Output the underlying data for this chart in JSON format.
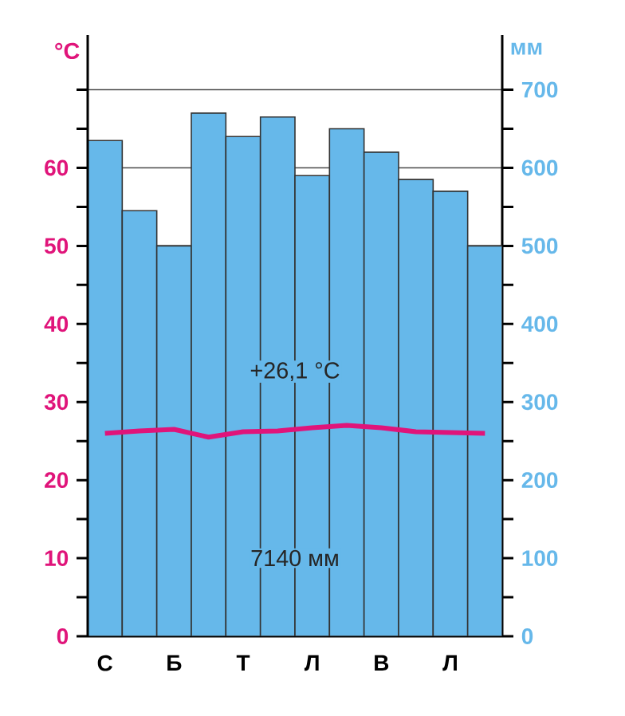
{
  "chart_data": {
    "type": "bar",
    "ylabel": "°C",
    "y2label": "мм",
    "categories": [
      "С",
      null,
      "Б",
      null,
      "Т",
      null,
      "Л",
      null,
      "В",
      null,
      "Л",
      null
    ],
    "series": [
      {
        "axis": "y2",
        "color": "#66b8ea",
        "values": [
          635,
          545,
          500,
          670,
          640,
          665,
          590,
          650,
          620,
          585,
          570,
          500
        ]
      },
      {
        "type": "line",
        "axis": "y",
        "color": "#e0147a",
        "values": [
          26.0,
          26.3,
          26.5,
          25.5,
          26.2,
          26.3,
          26.7,
          27.0,
          26.7,
          26.2,
          26.1,
          26.0
        ]
      }
    ],
    "ylim": [
      0,
      77
    ],
    "yticks": [
      0,
      10,
      20,
      30,
      40,
      50,
      60,
      {
        "value": 70,
        "label": null
      }
    ],
    "y2lim": [
      0,
      770
    ],
    "y2ticks": [
      0,
      100,
      200,
      300,
      400,
      500,
      600,
      700
    ],
    "annotations": [
      "+26,1 °C",
      "7140 мм"
    ],
    "grid": "y",
    "marker": "none",
    "line_style": "solid"
  }
}
